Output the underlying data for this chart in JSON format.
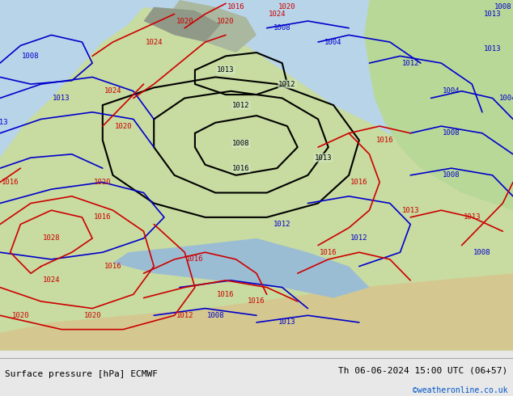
{
  "title_left": "Surface pressure [hPa] ECMWF",
  "title_right": "Th 06-06-2024 15:00 UTC (06+57)",
  "credit": "©weatheronline.co.uk",
  "bg_color": "#d0e8c0",
  "land_color": "#b8d8a0",
  "sea_color": "#c8e8f0",
  "text_color_black": "#000000",
  "text_color_blue": "#0000cc",
  "text_color_red": "#cc0000",
  "credit_color": "#0055cc",
  "footer_bg": "#e8e8e8",
  "figsize": [
    6.34,
    4.9
  ],
  "dpi": 100
}
